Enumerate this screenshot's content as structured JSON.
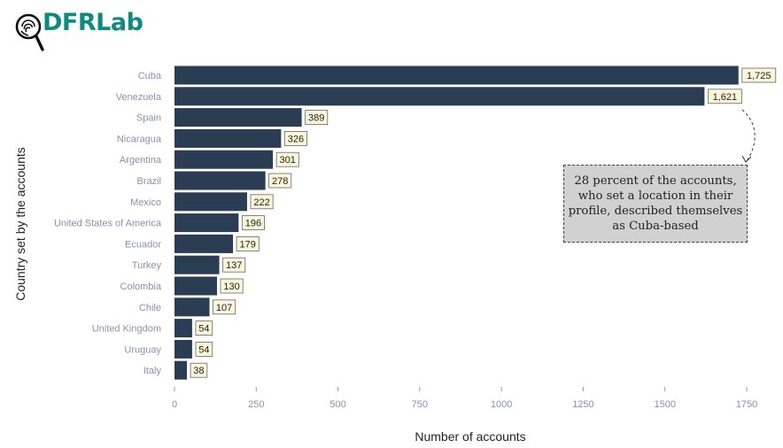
{
  "brand": {
    "name": "DFRLab",
    "icon": "fingerprint-magnifier-icon",
    "color": "#0e8a7e"
  },
  "annotation": {
    "text": "28 percent of the accounts, who set a location in their profile, described themselves as Cuba-based"
  },
  "chart_data": {
    "type": "bar",
    "orientation": "horizontal",
    "categories": [
      "Cuba",
      "Venezuela",
      "Spain",
      "Nicaragua",
      "Argentina",
      "Brazil",
      "Mexico",
      "United States of America",
      "Ecuador",
      "Turkey",
      "Colombia",
      "Chile",
      "United Kingdom",
      "Uruguay",
      "Italy"
    ],
    "values": [
      1725,
      1621,
      389,
      326,
      301,
      278,
      222,
      196,
      179,
      137,
      130,
      107,
      54,
      54,
      38
    ],
    "data_labels": [
      "1,725",
      "1,621",
      "389",
      "326",
      "301",
      "278",
      "222",
      "196",
      "179",
      "137",
      "130",
      "107",
      "54",
      "54",
      "38"
    ],
    "xlabel": "Number of accounts",
    "ylabel": "Country set by the accounts",
    "xlim": [
      0,
      1750
    ],
    "xticks": [
      0,
      250,
      500,
      750,
      1000,
      1250,
      1500,
      1750
    ],
    "grid": false,
    "colors": {
      "bar": "#2b3d52",
      "label_bg": "#fbf6d9",
      "tick_text": "#8e8eb0",
      "axis_title": "#222222"
    }
  }
}
